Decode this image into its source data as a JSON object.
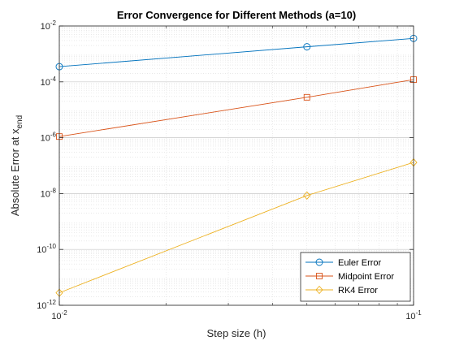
{
  "chart_data": {
    "type": "line",
    "title": "Error Convergence for Different Methods (a=10)",
    "xlabel": "Step size (h)",
    "ylabel": {
      "main": "Absolute Error at x",
      "sub": "end"
    },
    "x_scale": "log",
    "y_scale": "log",
    "xlim": [
      0.01,
      0.1
    ],
    "ylim": [
      1e-12,
      0.01
    ],
    "x_ticks": [
      {
        "value": 0.01,
        "base": "10",
        "exp": "-2"
      },
      {
        "value": 0.1,
        "base": "10",
        "exp": "-1"
      }
    ],
    "y_ticks": [
      {
        "value": 1e-12,
        "base": "10",
        "exp": "-12"
      },
      {
        "value": 1e-10,
        "base": "10",
        "exp": "-10"
      },
      {
        "value": 1e-08,
        "base": "10",
        "exp": "-8"
      },
      {
        "value": 1e-06,
        "base": "10",
        "exp": "-6"
      },
      {
        "value": 0.0001,
        "base": "10",
        "exp": "-4"
      },
      {
        "value": 0.01,
        "base": "10",
        "exp": "-2"
      }
    ],
    "grid": true,
    "minor_grid": true,
    "legend_position": "bottom-right",
    "x": [
      0.01,
      0.05,
      0.1
    ],
    "series": [
      {
        "name": "Euler Error",
        "color": "#0072BD",
        "marker": "circle",
        "values": [
          0.00035,
          0.0018,
          0.0036
        ]
      },
      {
        "name": "Midpoint Error",
        "color": "#D95319",
        "marker": "square",
        "values": [
          1.1e-06,
          2.8e-05,
          0.00012
        ]
      },
      {
        "name": "RK4 Error",
        "color": "#EDB120",
        "marker": "diamond",
        "values": [
          2.8e-12,
          8.5e-09,
          1.3e-07
        ]
      }
    ]
  }
}
